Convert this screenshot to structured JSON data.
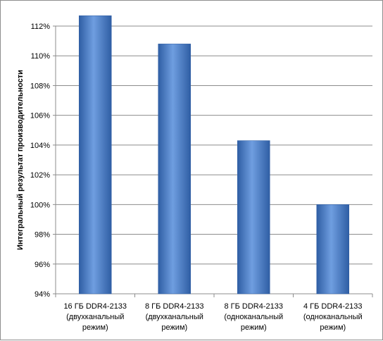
{
  "chart_data": {
    "type": "bar",
    "title": "",
    "xlabel": "",
    "ylabel": "Интегральный результат производительности",
    "categories": [
      [
        "16 ГБ DDR4-2133",
        "(двухканальный",
        "режим)"
      ],
      [
        "8 ГБ DDR4-2133",
        "(двухканальный",
        "режим)"
      ],
      [
        "8 ГБ DDR4-2133",
        "(одноканальный",
        "режим)"
      ],
      [
        "4 ГБ DDR4-2133",
        "(одноканальный",
        "режим)"
      ]
    ],
    "values": [
      112.7,
      110.8,
      104.3,
      100.0
    ],
    "ylim": [
      94,
      112
    ],
    "yticks": [
      94,
      96,
      98,
      100,
      102,
      104,
      106,
      108,
      110,
      112
    ],
    "ytick_labels": [
      "94%",
      "96%",
      "98%",
      "100%",
      "102%",
      "104%",
      "106%",
      "108%",
      "110%",
      "112%"
    ],
    "grid": true,
    "legend": "none",
    "colors": {
      "bar": "#4a7fc8",
      "bar_light": "#6f9ee0",
      "bar_dark": "#2f5ea4",
      "grid": "#8c8c8c",
      "axis": "#8c8c8c"
    }
  }
}
